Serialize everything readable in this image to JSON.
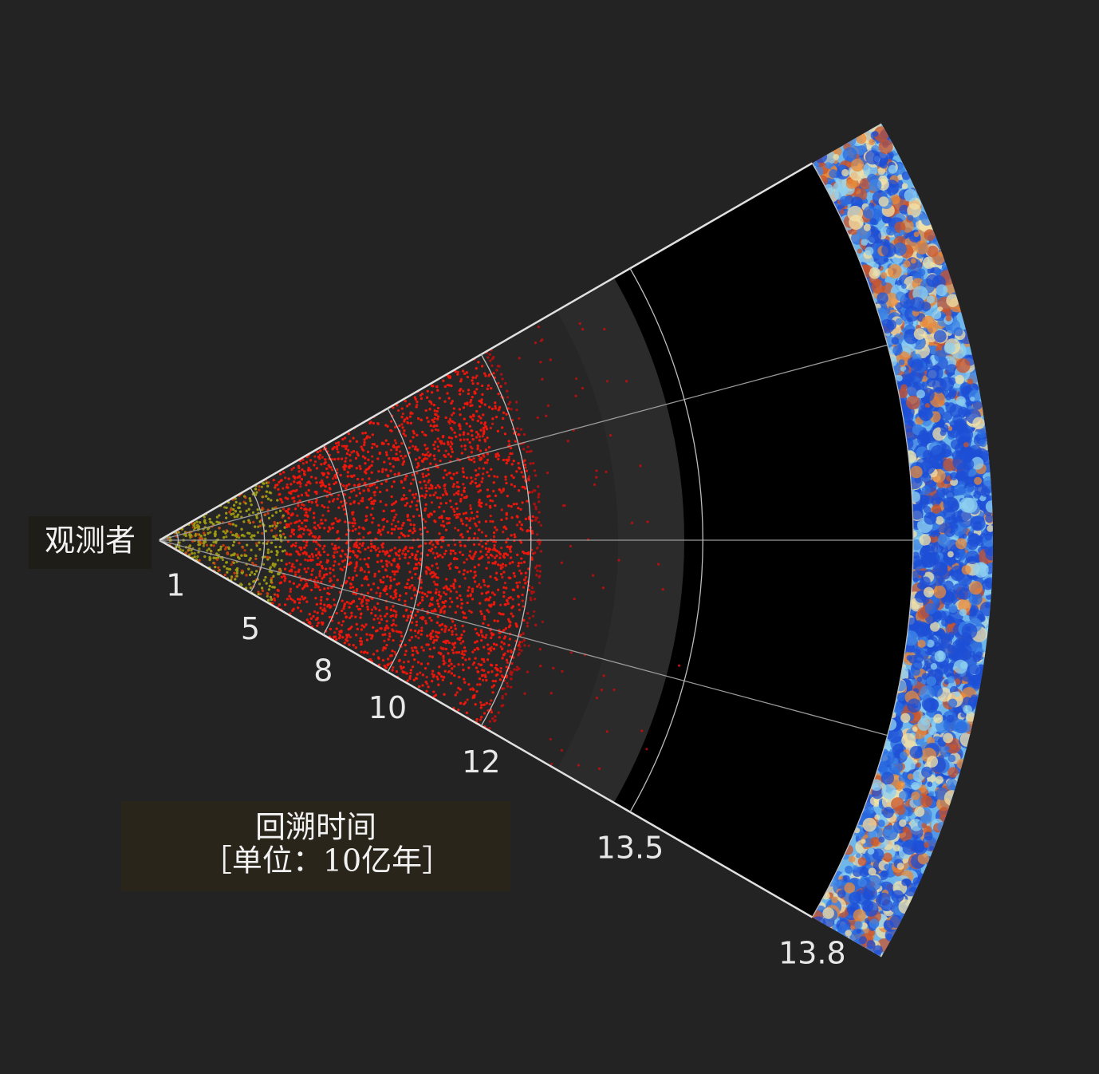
{
  "observer_label": "观测者",
  "axis": {
    "title": "回溯时间",
    "unit": "［单位：10亿年］",
    "ticks": [
      1,
      5,
      8,
      10,
      12,
      13.5,
      13.8
    ]
  }
}
